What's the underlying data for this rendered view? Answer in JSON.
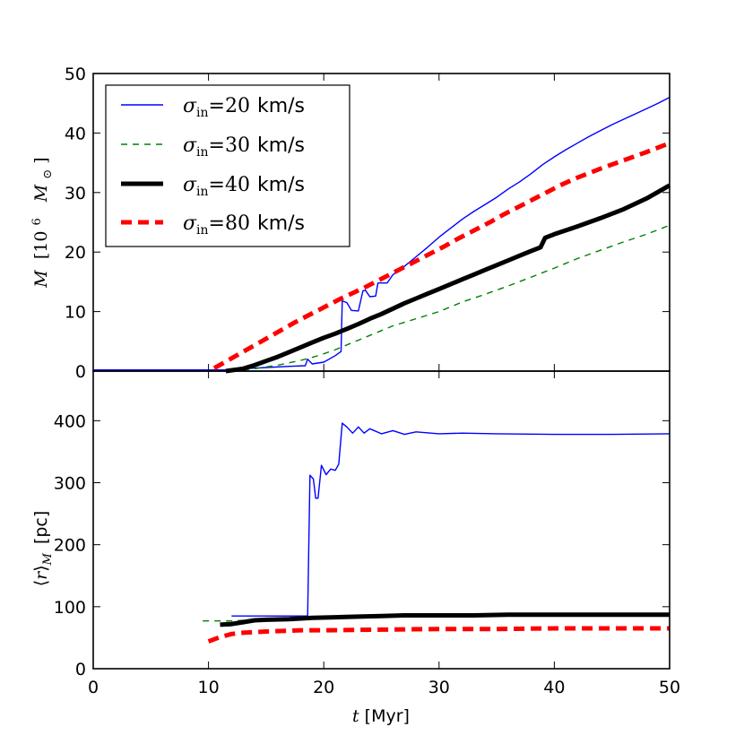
{
  "chart_data": [
    {
      "type": "line",
      "panel": "top",
      "ylabel_var": "M",
      "ylabel_units": "[10",
      "ylabel_exp": "6",
      "ylabel_sun": "M",
      "ylabel_sun_sub": "⊙",
      "ylabel_close": "]",
      "xlim": [
        0,
        50
      ],
      "ylim": [
        0,
        50
      ],
      "yticks": [
        0,
        10,
        20,
        30,
        40,
        50
      ],
      "legend_position": "upper-left",
      "series": [
        {
          "name": "σin=20 km/s",
          "legend_sigma": "σ",
          "legend_sub": "in",
          "legend_eq": "=20",
          "legend_unit": "km/s",
          "color": "#0000ff",
          "style": "solid",
          "width": 1.4,
          "points": [
            [
              0,
              0.2
            ],
            [
              12,
              0.2
            ],
            [
              13,
              0.4
            ],
            [
              15,
              0.6
            ],
            [
              17,
              0.8
            ],
            [
              18.4,
              0.9
            ],
            [
              18.6,
              2.0
            ],
            [
              19,
              1.2
            ],
            [
              20,
              1.5
            ],
            [
              21,
              2.6
            ],
            [
              21.5,
              3.3
            ],
            [
              21.6,
              11.8
            ],
            [
              22,
              11.5
            ],
            [
              22.4,
              10.2
            ],
            [
              23,
              10.1
            ],
            [
              23.4,
              13.5
            ],
            [
              23.6,
              13.6
            ],
            [
              24,
              12.5
            ],
            [
              24.5,
              12.6
            ],
            [
              24.7,
              14.8
            ],
            [
              25.5,
              14.8
            ],
            [
              26,
              16.2
            ],
            [
              27,
              17.6
            ],
            [
              28,
              19.2
            ],
            [
              29,
              20.8
            ],
            [
              30,
              22.5
            ],
            [
              31,
              24.0
            ],
            [
              32,
              25.5
            ],
            [
              33,
              26.8
            ],
            [
              34,
              28.0
            ],
            [
              35,
              29.2
            ],
            [
              36,
              30.6
            ],
            [
              37,
              31.8
            ],
            [
              38,
              33.2
            ],
            [
              39,
              34.7
            ],
            [
              40,
              36.0
            ],
            [
              41,
              37.2
            ],
            [
              42,
              38.3
            ],
            [
              43,
              39.4
            ],
            [
              44,
              40.4
            ],
            [
              45,
              41.4
            ],
            [
              46,
              42.3
            ],
            [
              47,
              43.2
            ],
            [
              48,
              44.1
            ],
            [
              49,
              45.0
            ],
            [
              50,
              46.0
            ]
          ]
        },
        {
          "name": "σin=30 km/s",
          "legend_sigma": "σ",
          "legend_sub": "in",
          "legend_eq": "=30",
          "legend_unit": "km/s",
          "color": "#008000",
          "style": "dashed",
          "width": 1.4,
          "points": [
            [
              12,
              0.1
            ],
            [
              13,
              0.2
            ],
            [
              14,
              0.4
            ],
            [
              15,
              0.7
            ],
            [
              16,
              1.0
            ],
            [
              17,
              1.4
            ],
            [
              18,
              1.8
            ],
            [
              19,
              2.3
            ],
            [
              20,
              2.9
            ],
            [
              21,
              3.6
            ],
            [
              22,
              4.4
            ],
            [
              23,
              5.2
            ],
            [
              24,
              6.0
            ],
            [
              25,
              6.8
            ],
            [
              26,
              7.6
            ],
            [
              27,
              8.2
            ],
            [
              28,
              8.8
            ],
            [
              29,
              9.4
            ],
            [
              30,
              10.0
            ],
            [
              31,
              10.8
            ],
            [
              32,
              11.6
            ],
            [
              34,
              12.9
            ],
            [
              36,
              14.3
            ],
            [
              38,
              15.8
            ],
            [
              40,
              17.3
            ],
            [
              42,
              18.9
            ],
            [
              44,
              20.3
            ],
            [
              46,
              21.7
            ],
            [
              48,
              23.0
            ],
            [
              50,
              24.5
            ]
          ]
        },
        {
          "name": "σin=40 km/s",
          "legend_sigma": "σ",
          "legend_sub": "in",
          "legend_eq": "=40",
          "legend_unit": "km/s",
          "color": "#000000",
          "style": "solid",
          "width": 5,
          "points": [
            [
              11.5,
              0
            ],
            [
              13,
              0.4
            ],
            [
              14,
              1.0
            ],
            [
              15,
              1.7
            ],
            [
              16,
              2.4
            ],
            [
              17,
              3.2
            ],
            [
              18,
              4.0
            ],
            [
              19,
              4.8
            ],
            [
              20,
              5.6
            ],
            [
              21,
              6.3
            ],
            [
              22,
              7.1
            ],
            [
              23,
              7.9
            ],
            [
              24,
              8.8
            ],
            [
              25,
              9.6
            ],
            [
              26,
              10.5
            ],
            [
              27,
              11.4
            ],
            [
              28,
              12.2
            ],
            [
              29,
              13.0
            ],
            [
              30,
              13.8
            ],
            [
              31,
              14.6
            ],
            [
              32,
              15.4
            ],
            [
              33,
              16.2
            ],
            [
              34,
              17.0
            ],
            [
              35,
              17.8
            ],
            [
              36,
              18.6
            ],
            [
              37,
              19.4
            ],
            [
              38,
              20.2
            ],
            [
              38.8,
              20.8
            ],
            [
              39.2,
              22.4
            ],
            [
              40,
              23.0
            ],
            [
              42,
              24.3
            ],
            [
              44,
              25.7
            ],
            [
              46,
              27.2
            ],
            [
              48,
              29.0
            ],
            [
              50,
              31.2
            ]
          ]
        },
        {
          "name": "σin=80 km/s",
          "legend_sigma": "σ",
          "legend_sub": "in",
          "legend_eq": "=80",
          "legend_unit": "km/s",
          "color": "#ff0000",
          "style": "dashed",
          "width": 5,
          "points": [
            [
              10.5,
              0.5
            ],
            [
              11.5,
              1.6
            ],
            [
              12.5,
              2.7
            ],
            [
              13.5,
              3.8
            ],
            [
              14.5,
              4.9
            ],
            [
              15.5,
              6.0
            ],
            [
              16.5,
              7.1
            ],
            [
              17.5,
              8.2
            ],
            [
              18.5,
              9.2
            ],
            [
              19.5,
              10.2
            ],
            [
              20.5,
              11.2
            ],
            [
              21.5,
              12.2
            ],
            [
              22.5,
              13.1
            ],
            [
              23.5,
              14.0
            ],
            [
              24.5,
              15.0
            ],
            [
              25.5,
              16.0
            ],
            [
              26.5,
              17.0
            ],
            [
              27.5,
              18.0
            ],
            [
              28.5,
              19.0
            ],
            [
              29.5,
              20.0
            ],
            [
              30.5,
              21.0
            ],
            [
              31.5,
              22.1
            ],
            [
              32.5,
              23.1
            ],
            [
              33.5,
              24.1
            ],
            [
              34.5,
              25.1
            ],
            [
              35.5,
              26.2
            ],
            [
              36.5,
              27.2
            ],
            [
              37.5,
              28.2
            ],
            [
              38.5,
              29.2
            ],
            [
              39.5,
              30.2
            ],
            [
              40.5,
              31.2
            ],
            [
              42,
              32.5
            ],
            [
              44,
              34.0
            ],
            [
              46,
              35.4
            ],
            [
              48,
              36.8
            ],
            [
              50,
              38.3
            ]
          ]
        }
      ]
    },
    {
      "type": "line",
      "panel": "bottom",
      "ylabel_left": "⟨",
      "ylabel_var": "r",
      "ylabel_right": "⟩",
      "ylabel_sub": "M",
      "ylabel_units": "[pc]",
      "xlabel_var": "t",
      "xlabel_units": "[Myr]",
      "xlim": [
        0,
        50
      ],
      "ylim": [
        0,
        480
      ],
      "yticks": [
        0,
        100,
        200,
        300,
        400
      ],
      "xticks": [
        0,
        10,
        20,
        30,
        40,
        50
      ],
      "series": [
        {
          "name": "σin=20 km/s",
          "color": "#0000ff",
          "style": "solid",
          "width": 1.4,
          "points": [
            [
              12,
              85
            ],
            [
              18.6,
              85
            ],
            [
              18.8,
              312
            ],
            [
              19.1,
              306
            ],
            [
              19.3,
              275
            ],
            [
              19.5,
              275
            ],
            [
              19.8,
              328
            ],
            [
              20.2,
              313
            ],
            [
              20.6,
              322
            ],
            [
              21,
              320
            ],
            [
              21.3,
              330
            ],
            [
              21.6,
              396
            ],
            [
              22,
              390
            ],
            [
              22.5,
              380
            ],
            [
              23,
              390
            ],
            [
              23.5,
              380
            ],
            [
              24,
              387
            ],
            [
              25,
              379
            ],
            [
              26,
              384
            ],
            [
              27,
              378
            ],
            [
              28,
              382
            ],
            [
              30,
              379
            ],
            [
              32,
              380
            ],
            [
              35,
              379
            ],
            [
              40,
              378
            ],
            [
              45,
              378
            ],
            [
              50,
              379
            ]
          ]
        },
        {
          "name": "σin=30 km/s",
          "color": "#008000",
          "style": "dashed",
          "width": 1.4,
          "points": [
            [
              9.5,
              77
            ],
            [
              12,
              77
            ],
            [
              15,
              80
            ],
            [
              18,
              82
            ],
            [
              20,
              84
            ],
            [
              25,
              86
            ],
            [
              30,
              87
            ],
            [
              35,
              88
            ],
            [
              40,
              88
            ],
            [
              45,
              89
            ],
            [
              50,
              89
            ]
          ]
        },
        {
          "name": "σin=40 km/s",
          "color": "#000000",
          "style": "solid",
          "width": 5,
          "points": [
            [
              11,
              71
            ],
            [
              12,
              72
            ],
            [
              13,
              75
            ],
            [
              14,
              78
            ],
            [
              15,
              79
            ],
            [
              17,
              80
            ],
            [
              19,
              82
            ],
            [
              21,
              83
            ],
            [
              23,
              84
            ],
            [
              25,
              85
            ],
            [
              27,
              86
            ],
            [
              30,
              86
            ],
            [
              33,
              86
            ],
            [
              36,
              87
            ],
            [
              40,
              87
            ],
            [
              45,
              87
            ],
            [
              50,
              87
            ]
          ]
        },
        {
          "name": "σin=80 km/s",
          "color": "#ff0000",
          "style": "dashed",
          "width": 5,
          "points": [
            [
              10,
              44
            ],
            [
              11,
              51
            ],
            [
              12,
              56
            ],
            [
              13,
              58
            ],
            [
              15,
              60
            ],
            [
              18,
              62
            ],
            [
              20,
              62
            ],
            [
              25,
              63
            ],
            [
              30,
              64
            ],
            [
              35,
              64
            ],
            [
              40,
              65
            ],
            [
              45,
              65
            ],
            [
              50,
              65
            ]
          ]
        }
      ]
    }
  ]
}
